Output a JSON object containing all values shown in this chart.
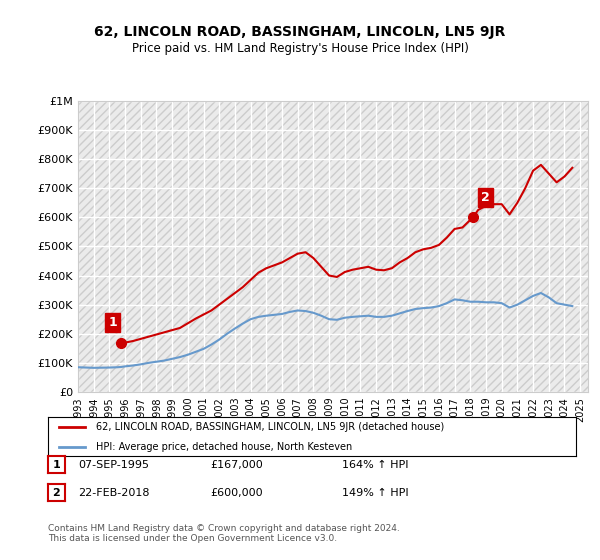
{
  "title": "62, LINCOLN ROAD, BASSINGHAM, LINCOLN, LN5 9JR",
  "subtitle": "Price paid vs. HM Land Registry's House Price Index (HPI)",
  "ylim": [
    0,
    1000000
  ],
  "yticks": [
    0,
    100000,
    200000,
    300000,
    400000,
    500000,
    600000,
    700000,
    800000,
    900000,
    1000000
  ],
  "ytick_labels": [
    "£0",
    "£100K",
    "£200K",
    "£300K",
    "£400K",
    "£500K",
    "£600K",
    "£700K",
    "£800K",
    "£900K",
    "£1M"
  ],
  "hpi_color": "#6699cc",
  "price_color": "#cc0000",
  "point1_color": "#cc0000",
  "point2_color": "#cc0000",
  "transaction1": {
    "date": "07-SEP-1995",
    "price": 167000,
    "label": "1",
    "hpi_pct": "164%"
  },
  "transaction2": {
    "date": "22-FEB-2018",
    "price": 600000,
    "label": "2",
    "hpi_pct": "149%"
  },
  "legend_label1": "62, LINCOLN ROAD, BASSINGHAM, LINCOLN, LN5 9JR (detached house)",
  "legend_label2": "HPI: Average price, detached house, North Kesteven",
  "footer": "Contains HM Land Registry data © Crown copyright and database right 2024.\nThis data is licensed under the Open Government Licence v3.0.",
  "background_color": "#ffffff",
  "plot_bg_color": "#f0f0f0",
  "grid_color": "#ffffff",
  "hpi_data": {
    "years": [
      1993.0,
      1993.5,
      1994.0,
      1994.5,
      1995.0,
      1995.5,
      1995.75,
      1996.0,
      1996.5,
      1997.0,
      1997.5,
      1998.0,
      1998.5,
      1999.0,
      1999.5,
      2000.0,
      2000.5,
      2001.0,
      2001.5,
      2002.0,
      2002.5,
      2003.0,
      2003.5,
      2004.0,
      2004.5,
      2005.0,
      2005.5,
      2006.0,
      2006.5,
      2007.0,
      2007.5,
      2008.0,
      2008.5,
      2009.0,
      2009.5,
      2010.0,
      2010.5,
      2011.0,
      2011.5,
      2012.0,
      2012.5,
      2013.0,
      2013.5,
      2014.0,
      2014.5,
      2015.0,
      2015.5,
      2016.0,
      2016.5,
      2017.0,
      2017.5,
      2018.0,
      2018.5,
      2019.0,
      2019.5,
      2020.0,
      2020.5,
      2021.0,
      2021.5,
      2022.0,
      2022.5,
      2023.0,
      2023.5,
      2024.0,
      2024.5
    ],
    "values": [
      85000,
      84000,
      83000,
      83500,
      84000,
      85000,
      86000,
      88000,
      91000,
      95000,
      100000,
      104000,
      108000,
      114000,
      120000,
      128000,
      138000,
      148000,
      163000,
      180000,
      200000,
      218000,
      235000,
      250000,
      258000,
      262000,
      265000,
      268000,
      275000,
      280000,
      278000,
      272000,
      262000,
      250000,
      248000,
      255000,
      258000,
      260000,
      262000,
      258000,
      258000,
      262000,
      270000,
      278000,
      285000,
      288000,
      290000,
      295000,
      305000,
      318000,
      315000,
      310000,
      310000,
      308000,
      308000,
      305000,
      290000,
      300000,
      315000,
      330000,
      340000,
      325000,
      305000,
      300000,
      295000
    ]
  },
  "price_data": {
    "years": [
      1993.0,
      1995.75,
      2018.17,
      2024.5
    ],
    "values": [
      null,
      167000,
      600000,
      null
    ]
  },
  "price_line": {
    "years": [
      1995.75,
      1996.5,
      1997.5,
      1998.5,
      1999.5,
      2000.5,
      2001.5,
      2002.5,
      2003.5,
      2004.5,
      2005.0,
      2005.5,
      2006.0,
      2006.5,
      2007.0,
      2007.5,
      2008.0,
      2008.5,
      2009.0,
      2009.5,
      2010.0,
      2010.5,
      2011.0,
      2011.5,
      2012.0,
      2012.5,
      2013.0,
      2013.5,
      2014.0,
      2014.5,
      2015.0,
      2015.5,
      2016.0,
      2016.5,
      2017.0,
      2017.5,
      2018.17,
      2018.5,
      2019.0,
      2019.5,
      2020.0,
      2020.5,
      2021.0,
      2021.5,
      2022.0,
      2022.5,
      2023.0,
      2023.5,
      2024.0,
      2024.5
    ],
    "values": [
      167000,
      175000,
      190000,
      205000,
      220000,
      252000,
      280000,
      320000,
      360000,
      410000,
      425000,
      435000,
      445000,
      460000,
      475000,
      480000,
      460000,
      430000,
      400000,
      395000,
      412000,
      420000,
      425000,
      430000,
      420000,
      418000,
      425000,
      445000,
      460000,
      480000,
      490000,
      495000,
      505000,
      530000,
      560000,
      565000,
      600000,
      625000,
      640000,
      645000,
      645000,
      610000,
      650000,
      700000,
      760000,
      780000,
      750000,
      720000,
      740000,
      770000
    ]
  },
  "xlim": [
    1993.0,
    2025.5
  ],
  "xticks": [
    1993,
    1994,
    1995,
    1996,
    1997,
    1998,
    1999,
    2000,
    2001,
    2002,
    2003,
    2004,
    2005,
    2006,
    2007,
    2008,
    2009,
    2010,
    2011,
    2012,
    2013,
    2014,
    2015,
    2016,
    2017,
    2018,
    2019,
    2020,
    2021,
    2022,
    2023,
    2024,
    2025
  ]
}
